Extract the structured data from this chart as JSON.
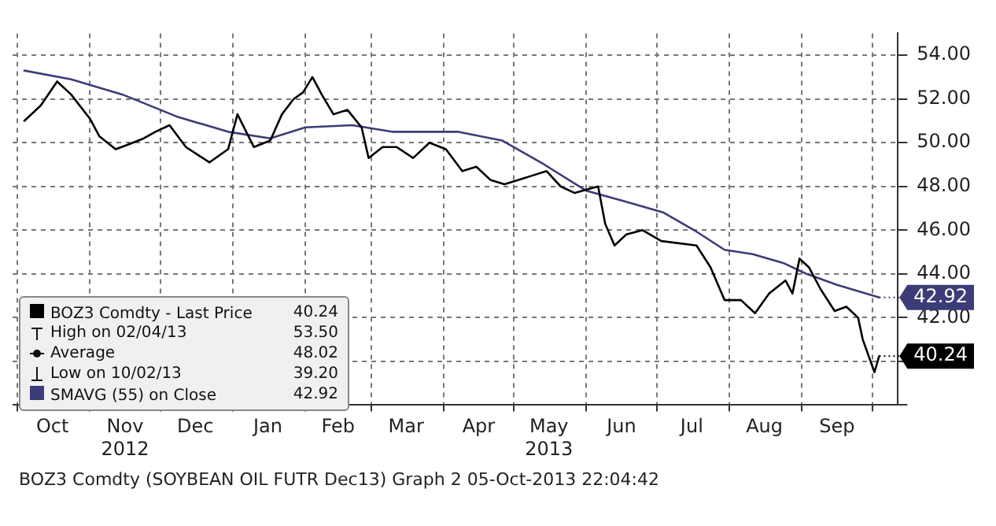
{
  "chart_data": {
    "type": "line",
    "x": [
      "2012-10-04",
      "2012-10-11",
      "2012-10-18",
      "2012-10-24",
      "2012-11-01",
      "2012-11-05",
      "2012-11-12",
      "2012-11-17",
      "2012-11-24",
      "2012-11-29",
      "2012-12-05",
      "2012-12-12",
      "2012-12-22",
      "2012-12-30",
      "2013-01-03",
      "2013-01-10",
      "2013-01-17",
      "2013-01-22",
      "2013-01-27",
      "2013-01-31",
      "2013-02-04",
      "2013-02-08",
      "2013-02-13",
      "2013-02-19",
      "2013-02-25",
      "2013-02-28",
      "2013-03-06",
      "2013-03-12",
      "2013-03-19",
      "2013-03-26",
      "2013-04-02",
      "2013-04-09",
      "2013-04-15",
      "2013-04-21",
      "2013-04-27",
      "2013-05-03",
      "2013-05-09",
      "2013-05-15",
      "2013-05-21",
      "2013-05-27",
      "2013-06-06",
      "2013-06-09",
      "2013-06-13",
      "2013-06-18",
      "2013-06-25",
      "2013-07-03",
      "2013-07-18",
      "2013-07-24",
      "2013-07-28",
      "2013-07-30",
      "2013-08-06",
      "2013-08-12",
      "2013-08-18",
      "2013-08-25",
      "2013-08-28",
      "2013-08-31",
      "2013-09-04",
      "2013-09-09",
      "2013-09-15",
      "2013-09-20",
      "2013-09-25",
      "2013-09-27",
      "2013-10-02",
      "2013-10-04"
    ],
    "series": [
      {
        "name": "BOZ3 Comdty - Last Price",
        "color": "#000000",
        "values": [
          51.0,
          51.7,
          52.8,
          52.2,
          51.1,
          50.3,
          49.7,
          49.9,
          50.2,
          50.5,
          50.8,
          49.8,
          49.1,
          49.7,
          51.3,
          49.8,
          50.1,
          51.3,
          52.0,
          52.3,
          53.0,
          52.2,
          51.3,
          51.5,
          50.7,
          49.3,
          49.8,
          49.8,
          49.3,
          50.0,
          49.7,
          48.7,
          48.9,
          48.3,
          48.1,
          48.3,
          48.5,
          48.7,
          48.0,
          47.7,
          48.0,
          46.3,
          45.3,
          45.8,
          46.0,
          45.5,
          45.3,
          44.3,
          43.3,
          42.8,
          42.8,
          42.2,
          43.1,
          43.7,
          43.1,
          44.7,
          44.3,
          43.3,
          42.3,
          42.5,
          42.0,
          41.0,
          39.5,
          40.24
        ],
        "value_labels": [
          null,
          null,
          null,
          null,
          null,
          null,
          null,
          null,
          null,
          null,
          null,
          null,
          null,
          null,
          null,
          null,
          null,
          null,
          null,
          null,
          null,
          null,
          null,
          null,
          null,
          null,
          null,
          null,
          null,
          null,
          null,
          null,
          null,
          null,
          null,
          null,
          null,
          null,
          null,
          null,
          null,
          null,
          null,
          null,
          null,
          null,
          null,
          null,
          null,
          null,
          null,
          null,
          null,
          null,
          null,
          null,
          null,
          null,
          null,
          null,
          null,
          null,
          null,
          "40.24"
        ]
      },
      {
        "name": "SMAVG (55) on Close",
        "color": "#3c3c78",
        "x": [
          "2012-10-04",
          "2012-10-24",
          "2012-11-15",
          "2012-12-08",
          "2012-12-30",
          "2013-01-17",
          "2013-02-01",
          "2013-02-21",
          "2013-03-10",
          "2013-04-07",
          "2013-04-26",
          "2013-05-14",
          "2013-06-01",
          "2013-06-18",
          "2013-07-04",
          "2013-07-17",
          "2013-07-30",
          "2013-08-11",
          "2013-08-24",
          "2013-09-03",
          "2013-09-16",
          "2013-10-04"
        ],
        "values": [
          53.3,
          52.9,
          52.2,
          51.2,
          50.5,
          50.2,
          50.7,
          50.8,
          50.5,
          50.5,
          50.1,
          49.0,
          47.8,
          47.3,
          46.8,
          46.0,
          45.1,
          44.9,
          44.5,
          44.0,
          43.5,
          42.92
        ],
        "value_labels": [
          null,
          null,
          null,
          null,
          null,
          null,
          null,
          null,
          null,
          null,
          null,
          null,
          null,
          null,
          null,
          null,
          null,
          null,
          null,
          null,
          null,
          "42.92"
        ]
      }
    ],
    "xlim": [
      "2012-09-29",
      "2013-10-12"
    ],
    "xticks": [
      {
        "value": "2012-10-01",
        "label": null
      },
      {
        "value": "2012-10-16",
        "label": "Oct"
      },
      {
        "value": "2012-11-01",
        "label": null
      },
      {
        "value": "2012-11-16",
        "label": "Nov\n2012"
      },
      {
        "value": "2012-12-01",
        "label": null
      },
      {
        "value": "2012-12-16",
        "label": "Dec"
      },
      {
        "value": "2013-01-01",
        "label": null
      },
      {
        "value": "2013-01-16",
        "label": "Jan"
      },
      {
        "value": "2013-02-01",
        "label": null
      },
      {
        "value": "2013-02-15",
        "label": "Feb"
      },
      {
        "value": "2013-03-01",
        "label": null
      },
      {
        "value": "2013-03-16",
        "label": "Mar"
      },
      {
        "value": "2013-04-01",
        "label": null
      },
      {
        "value": "2013-04-16",
        "label": "Apr"
      },
      {
        "value": "2013-05-01",
        "label": null
      },
      {
        "value": "2013-05-16",
        "label": "May\n2013"
      },
      {
        "value": "2013-06-01",
        "label": null
      },
      {
        "value": "2013-06-16",
        "label": "Jun"
      },
      {
        "value": "2013-07-01",
        "label": null
      },
      {
        "value": "2013-07-16",
        "label": "Jul"
      },
      {
        "value": "2013-08-01",
        "label": null
      },
      {
        "value": "2013-08-16",
        "label": "Aug"
      },
      {
        "value": "2013-09-01",
        "label": null
      },
      {
        "value": "2013-09-16",
        "label": "Sep"
      },
      {
        "value": "2013-10-01",
        "label": null
      }
    ],
    "ylim": [
      38,
      55
    ],
    "yticks": [
      {
        "value": 38,
        "label": null
      },
      {
        "value": 40,
        "label": null
      },
      {
        "value": 42,
        "label": "42.00"
      },
      {
        "value": 44,
        "label": "44.00"
      },
      {
        "value": 46,
        "label": "46.00"
      },
      {
        "value": 48,
        "label": "48.00"
      },
      {
        "value": 50,
        "label": "50.00"
      },
      {
        "value": 52,
        "label": "52.00"
      },
      {
        "value": 54,
        "label": "54.00"
      }
    ],
    "grid": true,
    "legend": "bottom left",
    "marker": "none",
    "line_style": "solid",
    "annotations": [
      "High on 02/04/13 53.50",
      "Average 48.02",
      "Low on 10/02/13 39.20",
      "BOZ3 Comdty (SOYBEAN OIL FUTR Dec13) Graph 2 05-Oct-2013 22:04:42"
    ]
  }
}
